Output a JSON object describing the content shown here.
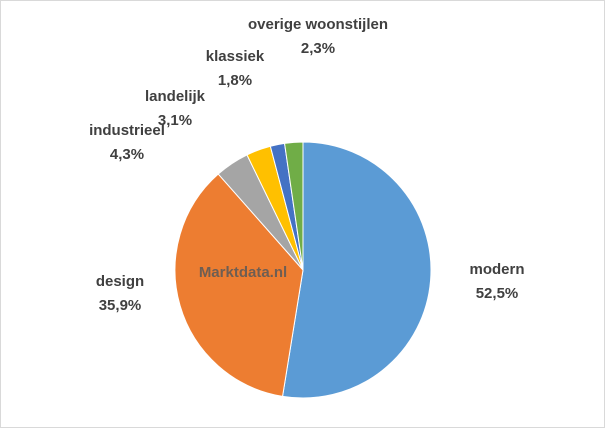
{
  "chart_data": {
    "type": "pie",
    "categories": [
      "modern",
      "design",
      "industrieel",
      "landelijk",
      "klassiek",
      "overige woonstijlen"
    ],
    "values": [
      52.5,
      35.9,
      4.3,
      3.1,
      1.8,
      2.3
    ],
    "value_labels": [
      "52,5%",
      "35,9%",
      "4,3%",
      "3,1%",
      "1,8%",
      "2,3%"
    ],
    "colors": [
      "#5b9bd5",
      "#ed7d31",
      "#a5a5a5",
      "#ffc000",
      "#4472c4",
      "#70ad47"
    ],
    "watermark": "Marktdata.nl"
  }
}
